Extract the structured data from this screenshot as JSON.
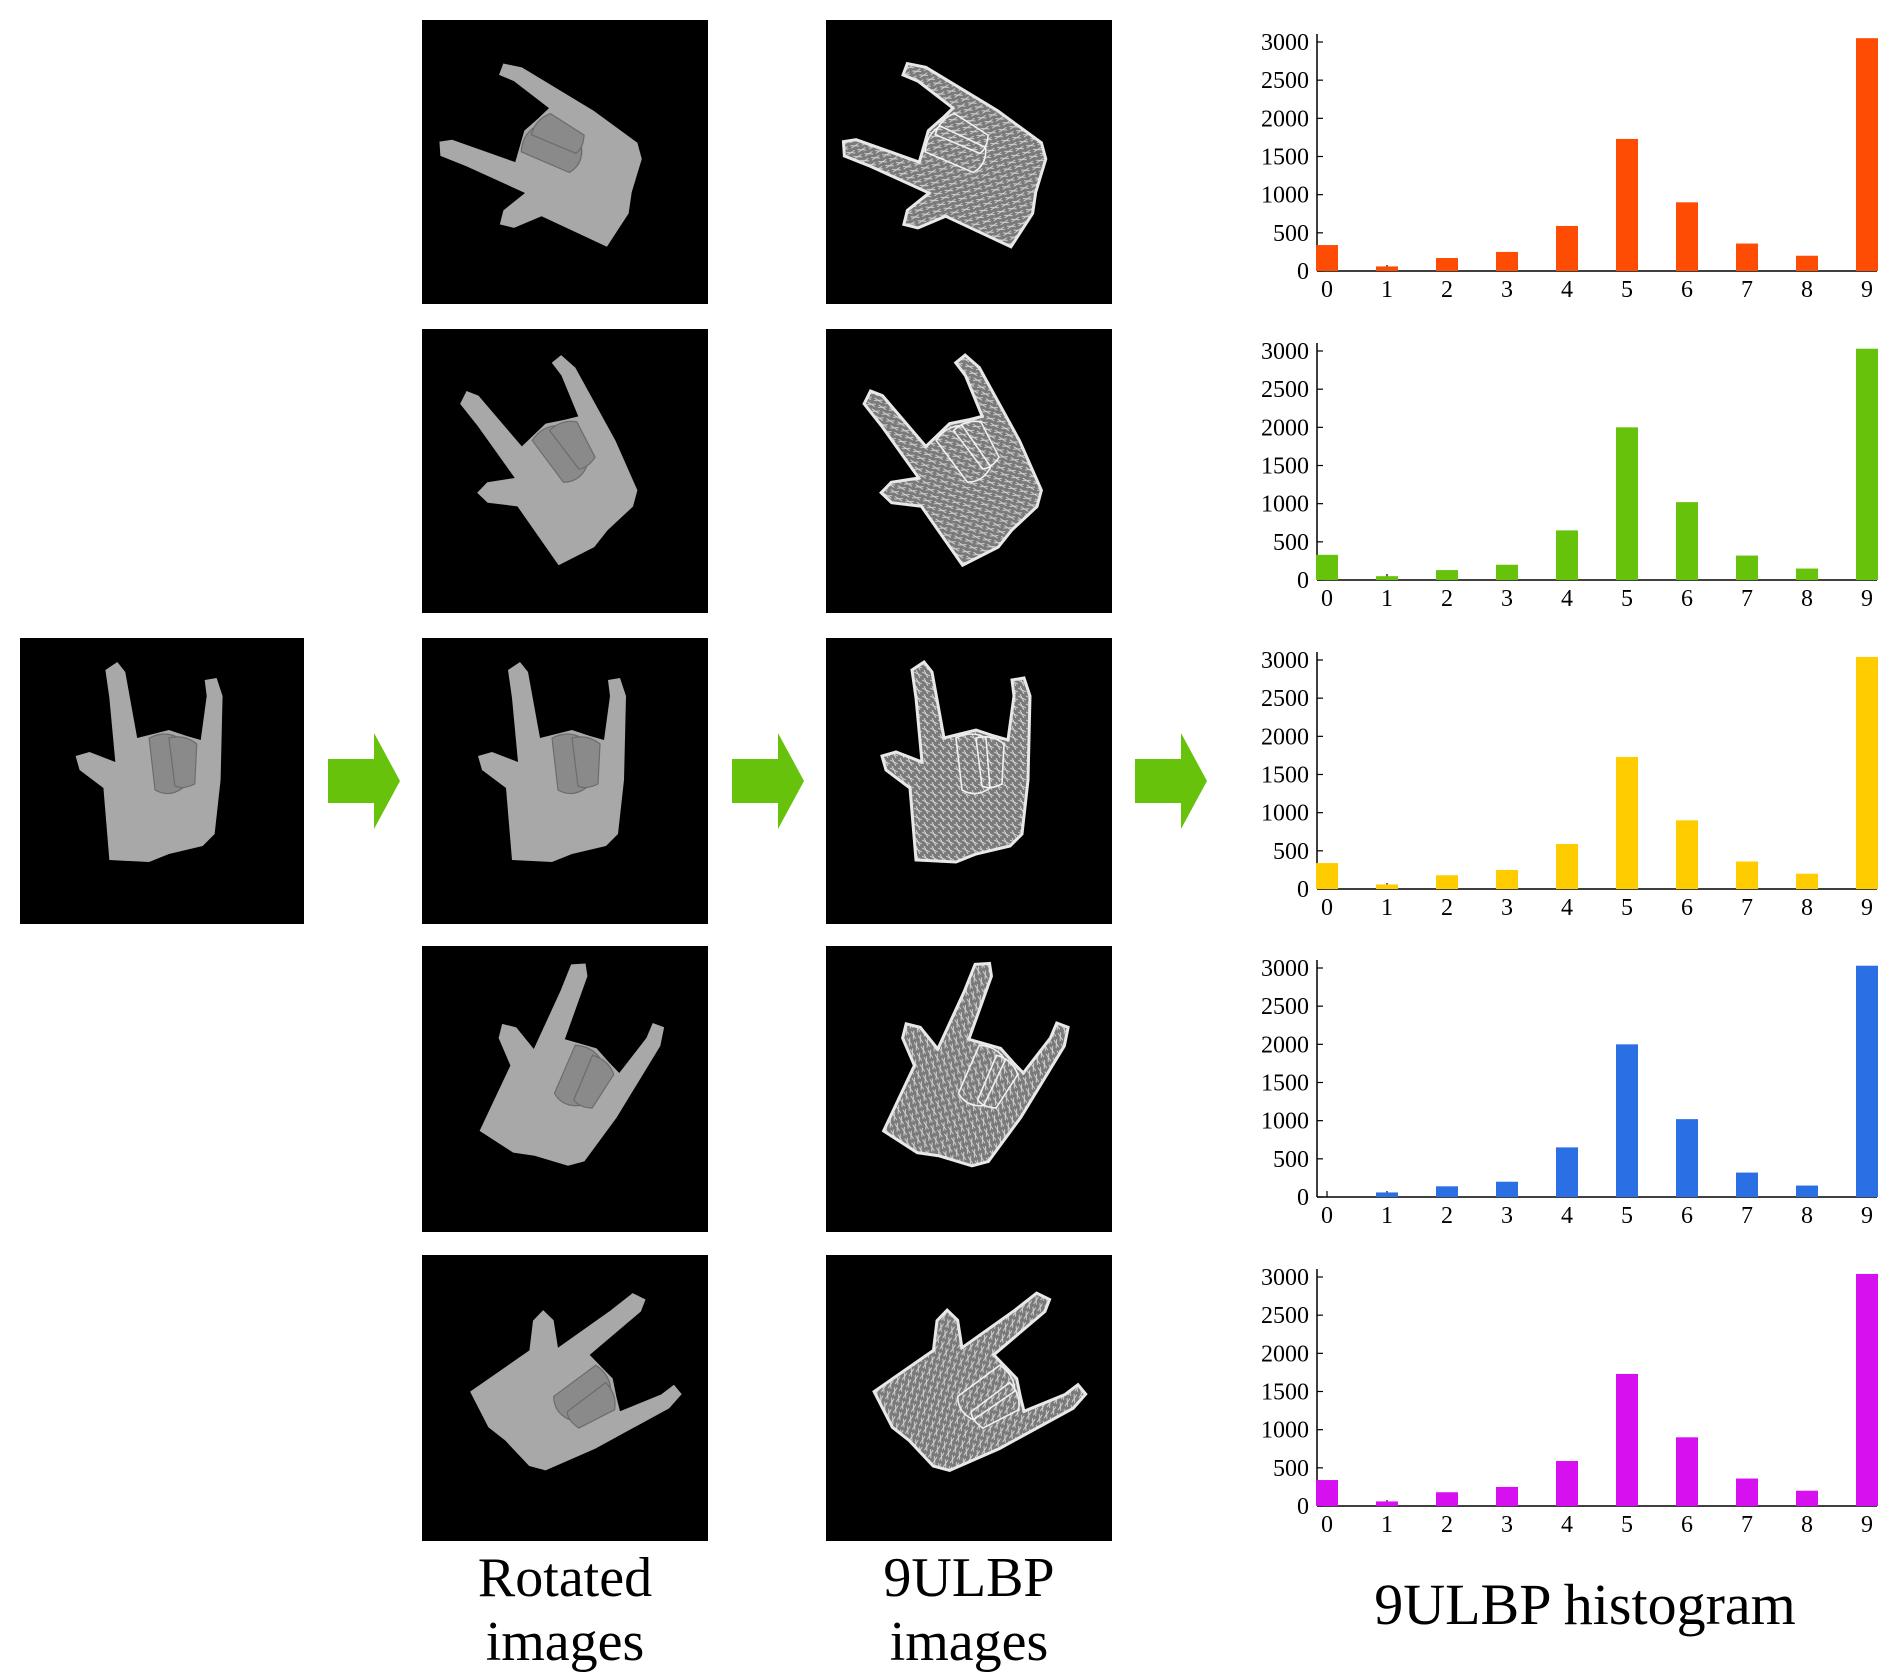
{
  "colors": {
    "arrow": "#66c20a",
    "panel_bg": "#000000",
    "hand_gray": "#a8a8a8",
    "lbp_gray": "#7a7a7a"
  },
  "captions": {
    "rotated": [
      "Rotated",
      "images"
    ],
    "ulbp": [
      "9ULBP",
      "images"
    ],
    "histogram": "9ULBP histogram"
  },
  "panels": {
    "original": {
      "rotation_deg": 0
    },
    "rotated": [
      {
        "rotation_deg": -60
      },
      {
        "rotation_deg": -30
      },
      {
        "rotation_deg": 0
      },
      {
        "rotation_deg": 30
      },
      {
        "rotation_deg": 60
      }
    ]
  },
  "chart_data": [
    {
      "type": "bar",
      "color": "#ff4c05",
      "categories": [
        "0",
        "1",
        "2",
        "3",
        "4",
        "5",
        "6",
        "7",
        "8",
        "9"
      ],
      "values": [
        340,
        60,
        170,
        250,
        590,
        1730,
        900,
        360,
        200,
        3050
      ],
      "ylim": [
        0,
        3000
      ],
      "yticks": [
        "0",
        "500",
        "1000",
        "1500",
        "2000",
        "2500",
        "3000"
      ]
    },
    {
      "type": "bar",
      "color": "#66c20a",
      "categories": [
        "0",
        "1",
        "2",
        "3",
        "4",
        "5",
        "6",
        "7",
        "8",
        "9"
      ],
      "values": [
        330,
        50,
        130,
        200,
        650,
        2000,
        1020,
        320,
        150,
        3030
      ],
      "ylim": [
        0,
        3000
      ],
      "yticks": [
        "0",
        "500",
        "1000",
        "1500",
        "2000",
        "2500",
        "3000"
      ]
    },
    {
      "type": "bar",
      "color": "#ffcc00",
      "categories": [
        "0",
        "1",
        "2",
        "3",
        "4",
        "5",
        "6",
        "7",
        "8",
        "9"
      ],
      "values": [
        340,
        60,
        180,
        250,
        590,
        1730,
        900,
        360,
        200,
        3040
      ],
      "ylim": [
        0,
        3000
      ],
      "yticks": [
        "0",
        "500",
        "1000",
        "1500",
        "2000",
        "2500",
        "3000"
      ]
    },
    {
      "type": "bar",
      "color": "#2b6fe5",
      "categories": [
        "0",
        "1",
        "2",
        "3",
        "4",
        "5",
        "6",
        "7",
        "8",
        "9"
      ],
      "values": [
        0,
        60,
        140,
        200,
        650,
        2000,
        1020,
        320,
        150,
        3030
      ],
      "ylim": [
        0,
        3000
      ],
      "yticks": [
        "0",
        "500",
        "1000",
        "1500",
        "2000",
        "2500",
        "3000"
      ]
    },
    {
      "type": "bar",
      "color": "#d710f0",
      "categories": [
        "0",
        "1",
        "2",
        "3",
        "4",
        "5",
        "6",
        "7",
        "8",
        "9"
      ],
      "values": [
        340,
        60,
        180,
        250,
        590,
        1730,
        900,
        360,
        200,
        3040
      ],
      "ylim": [
        0,
        3000
      ],
      "yticks": [
        "0",
        "500",
        "1000",
        "1500",
        "2000",
        "2500",
        "3000"
      ]
    }
  ]
}
